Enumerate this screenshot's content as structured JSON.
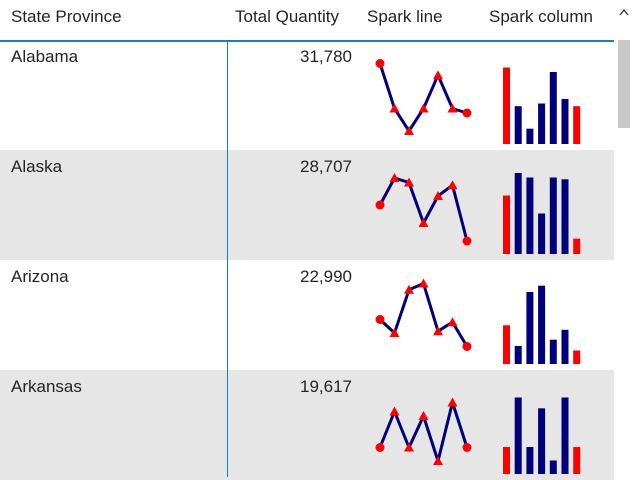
{
  "header": {
    "state_label": "State Province",
    "quantity_label": "Total Quantity",
    "sparkline_label": "Spark line",
    "sparkcolumn_label": "Spark column",
    "sort_icon": "chevron-up-icon"
  },
  "colors": {
    "line": "#00007a",
    "marker": "#ff0000",
    "bar": "#00007a",
    "bar_highlight": "#ff0000",
    "row_alt": "#e6e6e6",
    "accent": "#1f7bc1"
  },
  "rows": [
    {
      "state": "Alabama",
      "quantity": "31,780",
      "spark_line": [
        0.85,
        0.35,
        0.1,
        0.35,
        0.72,
        0.35,
        0.3
      ],
      "spark_column": [
        0.85,
        0.42,
        0.17,
        0.45,
        0.8,
        0.5,
        0.42
      ]
    },
    {
      "state": "Alaska",
      "quantity": "28,707",
      "spark_line": [
        0.5,
        0.8,
        0.75,
        0.3,
        0.6,
        0.72,
        0.1
      ],
      "spark_column": [
        0.65,
        0.9,
        0.85,
        0.45,
        0.85,
        0.83,
        0.17
      ]
    },
    {
      "state": "Arizona",
      "quantity": "22,990",
      "spark_line": [
        0.45,
        0.3,
        0.78,
        0.85,
        0.32,
        0.42,
        0.15
      ],
      "spark_column": [
        0.43,
        0.2,
        0.8,
        0.87,
        0.27,
        0.38,
        0.15
      ]
    },
    {
      "state": "Arkansas",
      "quantity": "19,617",
      "spark_line": [
        0.25,
        0.65,
        0.25,
        0.6,
        0.1,
        0.75,
        0.25
      ],
      "spark_column": [
        0.3,
        0.85,
        0.3,
        0.73,
        0.15,
        0.85,
        0.3
      ]
    }
  ]
}
